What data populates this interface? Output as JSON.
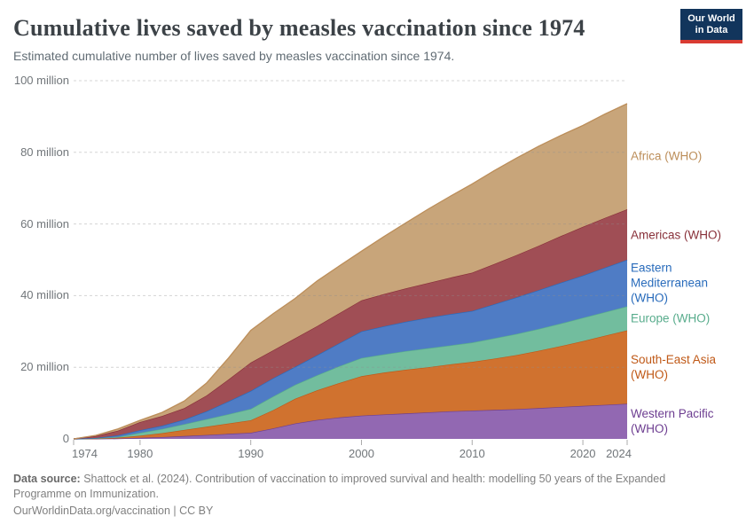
{
  "header": {
    "title": "Cumulative lives saved by measles vaccination since 1974",
    "subtitle": "Estimated cumulative number of lives saved by measles vaccination since 1974."
  },
  "logo": {
    "line1": "Our World",
    "line2": "in Data",
    "bg_color": "#12355C",
    "stripe_color": "#D93B32"
  },
  "chart_data": {
    "type": "area",
    "stacked": true,
    "title": "Cumulative lives saved by measles vaccination since 1974",
    "subtitle": "Estimated cumulative number of lives saved by measles vaccination since 1974.",
    "xlabel": "",
    "ylabel": "",
    "unit": "million lives saved (cumulative)",
    "xlim": [
      1974,
      2024
    ],
    "ylim": [
      0,
      100
    ],
    "grid": "dashed-horizontal",
    "legend_position": "right-of-plot",
    "x": [
      1974,
      1976,
      1978,
      1980,
      1982,
      1984,
      1986,
      1988,
      1990,
      1992,
      1994,
      1996,
      1998,
      2000,
      2002,
      2004,
      2006,
      2008,
      2010,
      2012,
      2014,
      2016,
      2018,
      2020,
      2022,
      2024
    ],
    "series": [
      {
        "name": "Western Pacific (WHO)",
        "color": "#6D3E91",
        "fill": "#9268B2",
        "values": [
          0,
          0.02,
          0.1,
          0.3,
          0.5,
          0.8,
          1.1,
          1.4,
          1.7,
          2.9,
          4.3,
          5.3,
          6.0,
          6.5,
          6.8,
          7.1,
          7.4,
          7.7,
          7.9,
          8.1,
          8.3,
          8.6,
          8.9,
          9.2,
          9.5,
          9.8
        ]
      },
      {
        "name": "South-East Asia (WHO)",
        "color": "#C05917",
        "fill": "#D0722F",
        "values": [
          0,
          0.08,
          0.25,
          0.6,
          1.1,
          1.7,
          2.3,
          2.9,
          3.5,
          5.1,
          6.9,
          8.3,
          9.6,
          11.0,
          11.7,
          12.2,
          12.6,
          13.1,
          13.6,
          14.3,
          15.1,
          16.0,
          17.0,
          18.1,
          19.3,
          20.5
        ]
      },
      {
        "name": "Europe (WHO)",
        "color": "#58AC8C",
        "fill": "#72BD9E",
        "values": [
          0,
          0.05,
          0.2,
          0.8,
          1.2,
          1.6,
          2.1,
          2.6,
          3.2,
          3.8,
          3.9,
          4.2,
          4.7,
          5.1,
          5.1,
          5.2,
          5.3,
          5.3,
          5.4,
          5.7,
          5.9,
          6.1,
          6.3,
          6.5,
          6.6,
          6.7
        ]
      },
      {
        "name": "Eastern Mediterranean (WHO)",
        "color": "#286BBB",
        "fill": "#4F7CC5",
        "values": [
          0,
          0.1,
          0.45,
          0.7,
          0.9,
          1.3,
          2.2,
          3.6,
          5.0,
          5.1,
          5.0,
          5.6,
          6.4,
          7.4,
          7.8,
          8.2,
          8.5,
          8.7,
          8.8,
          9.5,
          10.2,
          10.8,
          11.4,
          11.8,
          12.4,
          13.0
        ]
      },
      {
        "name": "Americas (WHO)",
        "color": "#883039",
        "fill": "#A04E55",
        "values": [
          0,
          0.55,
          1.3,
          2.3,
          2.7,
          3.2,
          4.4,
          6.1,
          7.9,
          7.8,
          8.0,
          8.1,
          8.4,
          8.7,
          9.0,
          9.3,
          9.7,
          10.2,
          10.7,
          11.2,
          11.8,
          12.4,
          13.0,
          13.6,
          13.9,
          14.1
        ]
      },
      {
        "name": "Africa (WHO)",
        "color": "#BC8E5A",
        "fill": "#C8A57A",
        "values": [
          0,
          0.2,
          0.5,
          0.5,
          1.0,
          2.0,
          3.5,
          6.0,
          9.0,
          10.2,
          11.1,
          12.6,
          13.2,
          13.7,
          16.0,
          18.3,
          20.6,
          22.7,
          24.8,
          26.1,
          27.1,
          27.8,
          28.1,
          28.3,
          29.0,
          29.5
        ]
      }
    ],
    "yticks": [
      {
        "value": 0,
        "label": "0"
      },
      {
        "value": 20,
        "label": "20 million"
      },
      {
        "value": 40,
        "label": "40 million"
      },
      {
        "value": 60,
        "label": "60 million"
      },
      {
        "value": 80,
        "label": "80 million"
      },
      {
        "value": 100,
        "label": "100 million"
      }
    ],
    "xticks": [
      {
        "value": 1974,
        "label": "1974"
      },
      {
        "value": 1980,
        "label": "1980"
      },
      {
        "value": 1990,
        "label": "1990"
      },
      {
        "value": 2000,
        "label": "2000"
      },
      {
        "value": 2010,
        "label": "2010"
      },
      {
        "value": 2020,
        "label": "2020"
      },
      {
        "value": 2024,
        "label": "2024"
      }
    ]
  },
  "footer": {
    "source_label": "Data source:",
    "source_text": " Shattock et al. (2024). Contribution of vaccination to improved survival and health: modelling 50 years of the Expanded Programme on Immunization.",
    "credit": "OurWorldinData.org/vaccination | CC BY"
  }
}
